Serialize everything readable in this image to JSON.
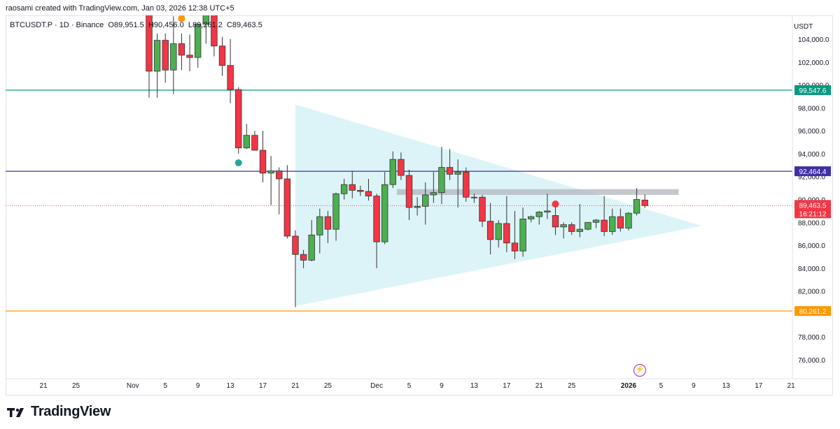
{
  "header": {
    "credit": "raosami created with TradingView.com, Jan 03, 2026 12:38 UTC+5"
  },
  "legend": {
    "symbol": "BTCUSDT.P · 1D · Binance",
    "open_label": "O",
    "open": "89,951.5",
    "high_label": "H",
    "high": "90,456.0",
    "low_label": "L",
    "low": "89,261.2",
    "close_label": "C",
    "close": "89,463.5"
  },
  "footer": {
    "brand": "TradingView"
  },
  "icons": {
    "logo": "tradingview-logo-icon",
    "flash": "lightning-bolt-icon"
  },
  "colors": {
    "up": "#26a69a",
    "down": "#ef5350",
    "up_fill": "#4caf50",
    "down_fill": "#f23645",
    "teal_line": "#089981",
    "purple_line": "#3f2ea8",
    "orange_line": "#ff9800",
    "triangle": "#d6f2f7",
    "rect": "#b2b5be",
    "price_dot_line": "#f23645"
  },
  "chart_data": {
    "type": "candlestick",
    "currency": "USDT",
    "ylim": [
      74500,
      106200
    ],
    "y_ticks": [
      "104,000.0",
      "102,000.0",
      "100,000.0",
      "98,000.0",
      "96,000.0",
      "94,000.0",
      "92,000.0",
      "90,000.0",
      "88,000.0",
      "86,000.0",
      "84,000.0",
      "82,000.0",
      "78,000.0",
      "76,000.0"
    ],
    "y_tick_values": [
      104000,
      102000,
      100000,
      98000,
      96000,
      94000,
      92000,
      90000,
      88000,
      86000,
      84000,
      82000,
      78000,
      76000
    ],
    "x_ticks": [
      {
        "label": "21",
        "date": "2025-10-21"
      },
      {
        "label": "25",
        "date": "2025-10-25"
      },
      {
        "label": "Nov",
        "date": "2025-11-01"
      },
      {
        "label": "5",
        "date": "2025-11-05"
      },
      {
        "label": "9",
        "date": "2025-11-09"
      },
      {
        "label": "13",
        "date": "2025-11-13"
      },
      {
        "label": "17",
        "date": "2025-11-17"
      },
      {
        "label": "21",
        "date": "2025-11-21"
      },
      {
        "label": "25",
        "date": "2025-11-25"
      },
      {
        "label": "Dec",
        "date": "2025-12-01"
      },
      {
        "label": "5",
        "date": "2025-12-05"
      },
      {
        "label": "9",
        "date": "2025-12-09"
      },
      {
        "label": "13",
        "date": "2025-12-13"
      },
      {
        "label": "17",
        "date": "2025-12-17"
      },
      {
        "label": "21",
        "date": "2025-12-21"
      },
      {
        "label": "25",
        "date": "2025-12-25"
      },
      {
        "label": "2026",
        "date": "2026-01-01"
      },
      {
        "label": "5",
        "date": "2026-01-05"
      },
      {
        "label": "9",
        "date": "2026-01-09"
      },
      {
        "label": "13",
        "date": "2026-01-13"
      },
      {
        "label": "17",
        "date": "2026-01-17"
      },
      {
        "label": "21",
        "date": "2026-01-21"
      }
    ],
    "candles": [
      {
        "date": "2025-11-03",
        "o": 107000,
        "h": 108000,
        "l": 98900,
        "c": 101200
      },
      {
        "date": "2025-11-04",
        "o": 101200,
        "h": 104500,
        "l": 98900,
        "c": 103900
      },
      {
        "date": "2025-11-05",
        "o": 103900,
        "h": 104500,
        "l": 100200,
        "c": 101300
      },
      {
        "date": "2025-11-06",
        "o": 101300,
        "h": 106000,
        "l": 99200,
        "c": 103600
      },
      {
        "date": "2025-11-07",
        "o": 103600,
        "h": 104500,
        "l": 101300,
        "c": 102600
      },
      {
        "date": "2025-11-08",
        "o": 102600,
        "h": 104400,
        "l": 101200,
        "c": 102400
      },
      {
        "date": "2025-11-09",
        "o": 102400,
        "h": 105300,
        "l": 101500,
        "c": 105300
      },
      {
        "date": "2025-11-10",
        "o": 105300,
        "h": 107500,
        "l": 103600,
        "c": 106500
      },
      {
        "date": "2025-11-11",
        "o": 106500,
        "h": 107000,
        "l": 102500,
        "c": 103400
      },
      {
        "date": "2025-11-12",
        "o": 103400,
        "h": 104200,
        "l": 100800,
        "c": 101700
      },
      {
        "date": "2025-11-13",
        "o": 101700,
        "h": 104000,
        "l": 98400,
        "c": 99600
      },
      {
        "date": "2025-11-14",
        "o": 99600,
        "h": 99800,
        "l": 94000,
        "c": 94500
      },
      {
        "date": "2025-11-15",
        "o": 94500,
        "h": 96600,
        "l": 94400,
        "c": 95600
      },
      {
        "date": "2025-11-16",
        "o": 95600,
        "h": 96000,
        "l": 94300,
        "c": 94300
      },
      {
        "date": "2025-11-17",
        "o": 94300,
        "h": 96000,
        "l": 91500,
        "c": 92300
      },
      {
        "date": "2025-11-18",
        "o": 92300,
        "h": 93800,
        "l": 89500,
        "c": 92500
      },
      {
        "date": "2025-11-19",
        "o": 92500,
        "h": 92800,
        "l": 88700,
        "c": 91800
      },
      {
        "date": "2025-11-20",
        "o": 91800,
        "h": 93000,
        "l": 86600,
        "c": 86800
      },
      {
        "date": "2025-11-21",
        "o": 86800,
        "h": 87300,
        "l": 80600,
        "c": 85200
      },
      {
        "date": "2025-11-22",
        "o": 85200,
        "h": 85600,
        "l": 84000,
        "c": 84700
      },
      {
        "date": "2025-11-23",
        "o": 84700,
        "h": 88200,
        "l": 84600,
        "c": 86900
      },
      {
        "date": "2025-11-24",
        "o": 86900,
        "h": 89200,
        "l": 85300,
        "c": 88500
      },
      {
        "date": "2025-11-25",
        "o": 88500,
        "h": 89000,
        "l": 86200,
        "c": 87400
      },
      {
        "date": "2025-11-26",
        "o": 87400,
        "h": 90600,
        "l": 86400,
        "c": 90500
      },
      {
        "date": "2025-11-27",
        "o": 90500,
        "h": 91800,
        "l": 90000,
        "c": 91300
      },
      {
        "date": "2025-11-28",
        "o": 91300,
        "h": 92500,
        "l": 90100,
        "c": 90800
      },
      {
        "date": "2025-11-29",
        "o": 90800,
        "h": 91200,
        "l": 90300,
        "c": 90700
      },
      {
        "date": "2025-11-30",
        "o": 90700,
        "h": 91800,
        "l": 89900,
        "c": 90300
      },
      {
        "date": "2025-12-01",
        "o": 90300,
        "h": 90500,
        "l": 84000,
        "c": 86300
      },
      {
        "date": "2025-12-02",
        "o": 86300,
        "h": 92400,
        "l": 86100,
        "c": 91300
      },
      {
        "date": "2025-12-03",
        "o": 91300,
        "h": 94200,
        "l": 91000,
        "c": 93500
      },
      {
        "date": "2025-12-04",
        "o": 93500,
        "h": 94100,
        "l": 91700,
        "c": 92100
      },
      {
        "date": "2025-12-05",
        "o": 92100,
        "h": 92600,
        "l": 88200,
        "c": 89300
      },
      {
        "date": "2025-12-06",
        "o": 89300,
        "h": 90200,
        "l": 88600,
        "c": 89400
      },
      {
        "date": "2025-12-07",
        "o": 89400,
        "h": 91500,
        "l": 87800,
        "c": 90400
      },
      {
        "date": "2025-12-08",
        "o": 90400,
        "h": 92400,
        "l": 89700,
        "c": 90600
      },
      {
        "date": "2025-12-09",
        "o": 90600,
        "h": 94600,
        "l": 89600,
        "c": 92800
      },
      {
        "date": "2025-12-10",
        "o": 92800,
        "h": 94400,
        "l": 91700,
        "c": 92200
      },
      {
        "date": "2025-12-11",
        "o": 92200,
        "h": 93500,
        "l": 89300,
        "c": 92400
      },
      {
        "date": "2025-12-12",
        "o": 92400,
        "h": 92800,
        "l": 89800,
        "c": 90200
      },
      {
        "date": "2025-12-13",
        "o": 90200,
        "h": 90500,
        "l": 89700,
        "c": 90200
      },
      {
        "date": "2025-12-14",
        "o": 90200,
        "h": 90400,
        "l": 87600,
        "c": 88100
      },
      {
        "date": "2025-12-15",
        "o": 88100,
        "h": 89700,
        "l": 85200,
        "c": 86500
      },
      {
        "date": "2025-12-16",
        "o": 86500,
        "h": 88200,
        "l": 85800,
        "c": 87900
      },
      {
        "date": "2025-12-17",
        "o": 87900,
        "h": 90300,
        "l": 85400,
        "c": 86200
      },
      {
        "date": "2025-12-18",
        "o": 86200,
        "h": 89000,
        "l": 84800,
        "c": 85500
      },
      {
        "date": "2025-12-19",
        "o": 85500,
        "h": 89300,
        "l": 85000,
        "c": 88300
      },
      {
        "date": "2025-12-20",
        "o": 88300,
        "h": 88600,
        "l": 88000,
        "c": 88500
      },
      {
        "date": "2025-12-21",
        "o": 88500,
        "h": 89000,
        "l": 87800,
        "c": 88900
      },
      {
        "date": "2025-12-22",
        "o": 88900,
        "h": 90500,
        "l": 88300,
        "c": 89000
      },
      {
        "date": "2025-12-23",
        "o": 88600,
        "h": 89500,
        "l": 86900,
        "c": 87600
      },
      {
        "date": "2025-12-24",
        "o": 87600,
        "h": 88000,
        "l": 86600,
        "c": 87800
      },
      {
        "date": "2025-12-25",
        "o": 87800,
        "h": 88000,
        "l": 86900,
        "c": 87200
      },
      {
        "date": "2025-12-26",
        "o": 87200,
        "h": 89600,
        "l": 86700,
        "c": 87400
      },
      {
        "date": "2025-12-27",
        "o": 87400,
        "h": 88000,
        "l": 87300,
        "c": 88000
      },
      {
        "date": "2025-12-28",
        "o": 88000,
        "h": 88300,
        "l": 87500,
        "c": 88200
      },
      {
        "date": "2025-12-29",
        "o": 88200,
        "h": 90300,
        "l": 86800,
        "c": 87200
      },
      {
        "date": "2025-12-30",
        "o": 87200,
        "h": 89200,
        "l": 86900,
        "c": 88500
      },
      {
        "date": "2025-12-31",
        "o": 88500,
        "h": 89200,
        "l": 87200,
        "c": 87500
      },
      {
        "date": "2026-01-01",
        "o": 87500,
        "h": 88900,
        "l": 87300,
        "c": 88800
      },
      {
        "date": "2026-01-02",
        "o": 88800,
        "h": 91000,
        "l": 88600,
        "c": 90000
      },
      {
        "date": "2026-01-03",
        "o": 89951.5,
        "h": 90456,
        "l": 89261.2,
        "c": 89463.5
      }
    ],
    "horizontal_lines": [
      {
        "value": 99547.6,
        "label": "99,547.6",
        "color": "#089981"
      },
      {
        "value": 92464.4,
        "label": "92,464.4",
        "color": "#3f2ea8"
      },
      {
        "value": 80261.2,
        "label": "80,261.2",
        "color": "#ff9800"
      }
    ],
    "current_price": {
      "value": 89463.5,
      "label": "89,463.5",
      "countdown": "16:21:12"
    },
    "triangle": {
      "points": [
        [
          "2025-11-21",
          98300
        ],
        [
          "2025-11-21",
          80700
        ],
        [
          "2026-01-10",
          87700
        ]
      ]
    },
    "resistance_zone": {
      "from": "2025-12-04",
      "to": "2026-01-07",
      "y1": 90900,
      "y2": 90400
    },
    "markers": [
      {
        "date": "2025-11-07",
        "value": 106700,
        "color": "#f23645"
      },
      {
        "date": "2025-11-07",
        "value": 105800,
        "color": "#ff9800"
      },
      {
        "date": "2025-11-14",
        "value": 93200,
        "color": "#26a69a"
      },
      {
        "date": "2025-12-23",
        "value": 89600,
        "color": "#f23645"
      }
    ]
  }
}
